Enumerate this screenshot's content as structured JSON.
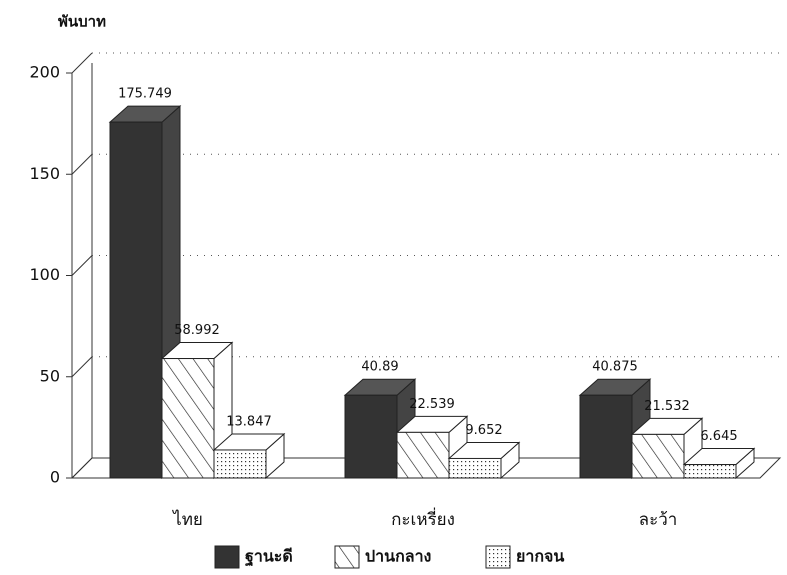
{
  "chart_data": {
    "type": "bar3d",
    "y_label": "พันบาท",
    "categories": [
      "ไทย",
      "กะเหรี่ยง",
      "ละว้า"
    ],
    "series": [
      {
        "name": "ฐานะดี",
        "color": "#333333",
        "fill": "solid",
        "values": [
          175.749,
          40.89,
          40.875
        ]
      },
      {
        "name": "ปานกลาง",
        "color": "#222222",
        "fill": "hatch",
        "values": [
          58.992,
          22.539,
          21.532
        ]
      },
      {
        "name": "ยากจน",
        "color": "#222222",
        "fill": "dots",
        "values": [
          13.847,
          9.652,
          6.645
        ]
      }
    ],
    "ylim": [
      0,
      200
    ],
    "yticks": [
      0,
      50,
      100,
      150,
      200
    ],
    "grid": true
  }
}
